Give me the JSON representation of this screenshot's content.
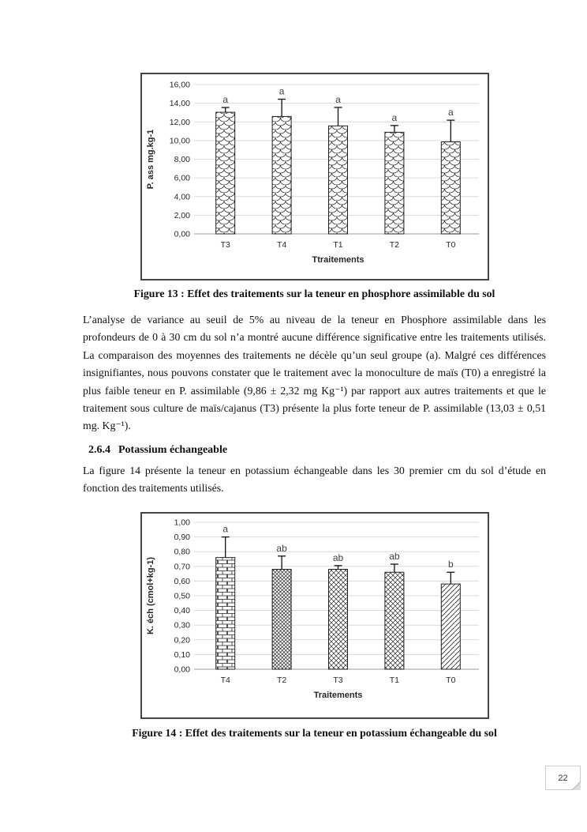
{
  "page": {
    "number": "22"
  },
  "figures": {
    "fig13_caption": "Figure 13 : Effet des traitements sur la teneur en phosphore assimilable du sol",
    "fig14_caption": "Figure 14 : Effet des traitements sur la teneur en potassium échangeable du sol"
  },
  "text": {
    "paragraph1": "L’analyse de variance au seuil de 5% au niveau de la teneur en Phosphore assimilable dans les profondeurs de 0 à 30 cm du sol n’a montré aucune différence significative entre les traitements utilisés. La comparaison des moyennes des traitements ne décèle qu’un seul groupe (a). Malgré ces différences insignifiantes, nous pouvons constater que le traitement avec la monoculture de maïs (T0) a enregistré la plus faible teneur en P. assimilable (9,86 ± 2,32 mg Kg⁻¹) par rapport aux autres traitements et que le traitement sous culture de maïs/cajanus (T3) présente la plus forte teneur de P. assimilable (13,03 ± 0,51 mg. Kg⁻¹).",
    "section_number": "2.6.4",
    "section_title": "Potassium échangeable",
    "paragraph2": "La figure 14 présente la teneur en potassium échangeable  dans les 30 premier cm du sol d’étude en fonction des traitements utilisés."
  },
  "chart_data": [
    {
      "name": "figure-13",
      "type": "bar",
      "title": "",
      "categories": [
        "T3",
        "T4",
        "T1",
        "T2",
        "T0"
      ],
      "values": [
        13.03,
        12.58,
        11.57,
        10.89,
        9.86
      ],
      "errors": [
        0.51,
        1.85,
        1.98,
        0.72,
        2.32
      ],
      "letters": [
        "a",
        "a",
        "a",
        "a",
        "a"
      ],
      "patterns": [
        "scale",
        "scale",
        "scale",
        "scale",
        "scale"
      ],
      "xlabel": "Ttraitements",
      "ylabel": "P. ass mg.kg-1",
      "ylim": [
        0,
        16
      ],
      "ytick_labels": [
        "16,00",
        "14,00",
        "12,00",
        "10,00",
        "8,00",
        "6,00",
        "4,00",
        "2,00",
        "0,00"
      ],
      "grid": true,
      "legend_position": "none"
    },
    {
      "name": "figure-14",
      "type": "bar",
      "title": "",
      "categories": [
        "T4",
        "T2",
        "T3",
        "T1",
        "T0"
      ],
      "values": [
        0.76,
        0.68,
        0.68,
        0.66,
        0.58
      ],
      "errors": [
        0.14,
        0.09,
        0.025,
        0.055,
        0.08
      ],
      "letters": [
        "a",
        "ab",
        "ab",
        "ab",
        "b"
      ],
      "patterns": [
        "brick",
        "diamond-dense",
        "diamond",
        "diamond",
        "diagonal"
      ],
      "xlabel": "Traitements",
      "ylabel": "K. éch (cmol+kg-1)",
      "ylim": [
        0,
        1
      ],
      "ytick_labels": [
        "1,00",
        "0,90",
        "0,80",
        "0,70",
        "0,60",
        "0,50",
        "0,40",
        "0,30",
        "0,20",
        "0,10",
        "0,00"
      ],
      "grid": true,
      "legend_position": "none"
    }
  ]
}
